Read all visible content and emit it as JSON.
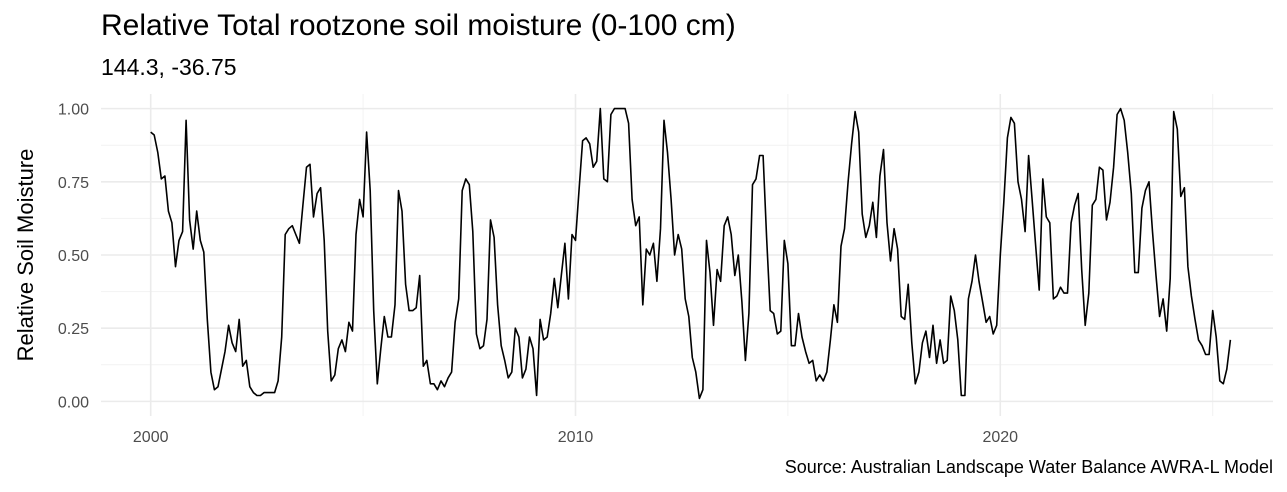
{
  "chart_data": {
    "type": "line",
    "title": "Relative Total rootzone soil moisture (0-100 cm)",
    "subtitle": "144.3, -36.75",
    "caption": "Source: Australian Landscape Water Balance AWRA-L Model",
    "xlabel": "",
    "ylabel": "Relative Soil Moisture",
    "xlim": [
      1998.83,
      2026.42
    ],
    "ylim": [
      -0.05,
      1.05
    ],
    "x_ticks": [
      2000,
      2010,
      2020
    ],
    "x_tick_labels": [
      "2000",
      "2010",
      "2020"
    ],
    "y_ticks": [
      0,
      0.25,
      0.5,
      0.75,
      1.0
    ],
    "y_tick_labels": [
      "0.00",
      "0.25",
      "0.50",
      "0.75",
      "1.00"
    ],
    "grid": true,
    "x_start": 2000.0,
    "x_step_months": 1,
    "series": [
      {
        "name": "Relative Soil Moisture",
        "color": "#000000",
        "values": [
          0.92,
          0.91,
          0.85,
          0.76,
          0.77,
          0.65,
          0.61,
          0.46,
          0.55,
          0.58,
          0.96,
          0.62,
          0.52,
          0.65,
          0.55,
          0.51,
          0.28,
          0.1,
          0.04,
          0.05,
          0.11,
          0.17,
          0.26,
          0.2,
          0.17,
          0.28,
          0.12,
          0.14,
          0.05,
          0.03,
          0.02,
          0.02,
          0.03,
          0.03,
          0.03,
          0.03,
          0.07,
          0.22,
          0.57,
          0.59,
          0.6,
          0.57,
          0.54,
          0.67,
          0.8,
          0.81,
          0.63,
          0.71,
          0.73,
          0.55,
          0.24,
          0.07,
          0.09,
          0.18,
          0.21,
          0.17,
          0.27,
          0.24,
          0.57,
          0.69,
          0.63,
          0.92,
          0.72,
          0.31,
          0.06,
          0.18,
          0.29,
          0.22,
          0.22,
          0.33,
          0.72,
          0.65,
          0.4,
          0.31,
          0.31,
          0.32,
          0.43,
          0.12,
          0.14,
          0.06,
          0.06,
          0.04,
          0.07,
          0.05,
          0.08,
          0.1,
          0.27,
          0.35,
          0.72,
          0.76,
          0.74,
          0.58,
          0.23,
          0.18,
          0.19,
          0.28,
          0.62,
          0.56,
          0.33,
          0.19,
          0.14,
          0.08,
          0.1,
          0.25,
          0.22,
          0.08,
          0.11,
          0.22,
          0.18,
          0.02,
          0.28,
          0.21,
          0.22,
          0.3,
          0.42,
          0.32,
          0.43,
          0.54,
          0.35,
          0.57,
          0.55,
          0.72,
          0.89,
          0.9,
          0.88,
          0.8,
          0.82,
          1.0,
          0.76,
          0.75,
          0.98,
          1.0,
          1.0,
          1.0,
          1.0,
          0.95,
          0.69,
          0.6,
          0.63,
          0.33,
          0.52,
          0.5,
          0.54,
          0.41,
          0.59,
          0.96,
          0.85,
          0.69,
          0.5,
          0.57,
          0.52,
          0.35,
          0.29,
          0.15,
          0.1,
          0.01,
          0.04,
          0.55,
          0.44,
          0.26,
          0.45,
          0.41,
          0.6,
          0.63,
          0.57,
          0.43,
          0.5,
          0.34,
          0.14,
          0.3,
          0.74,
          0.76,
          0.84,
          0.84,
          0.56,
          0.31,
          0.3,
          0.23,
          0.24,
          0.55,
          0.47,
          0.19,
          0.19,
          0.3,
          0.22,
          0.17,
          0.13,
          0.14,
          0.07,
          0.09,
          0.07,
          0.1,
          0.21,
          0.33,
          0.27,
          0.53,
          0.59,
          0.75,
          0.88,
          0.99,
          0.92,
          0.64,
          0.56,
          0.6,
          0.68,
          0.56,
          0.77,
          0.86,
          0.61,
          0.48,
          0.59,
          0.52,
          0.29,
          0.28,
          0.4,
          0.2,
          0.06,
          0.1,
          0.2,
          0.24,
          0.15,
          0.26,
          0.13,
          0.21,
          0.13,
          0.14,
          0.36,
          0.31,
          0.21,
          0.02,
          0.02,
          0.35,
          0.41,
          0.5,
          0.41,
          0.34,
          0.27,
          0.29,
          0.23,
          0.26,
          0.5,
          0.68,
          0.9,
          0.97,
          0.95,
          0.75,
          0.69,
          0.58,
          0.84,
          0.69,
          0.53,
          0.38,
          0.76,
          0.63,
          0.61,
          0.35,
          0.36,
          0.39,
          0.37,
          0.37,
          0.61,
          0.67,
          0.71,
          0.45,
          0.26,
          0.37,
          0.67,
          0.69,
          0.8,
          0.79,
          0.62,
          0.68,
          0.8,
          0.98,
          1.0,
          0.96,
          0.85,
          0.71,
          0.44,
          0.44,
          0.66,
          0.72,
          0.75,
          0.58,
          0.43,
          0.29,
          0.35,
          0.24,
          0.42,
          0.99,
          0.93,
          0.7,
          0.73,
          0.46,
          0.36,
          0.28,
          0.21,
          0.19,
          0.16,
          0.16,
          0.31,
          0.22,
          0.07,
          0.06,
          0.11,
          0.21
        ]
      }
    ]
  }
}
